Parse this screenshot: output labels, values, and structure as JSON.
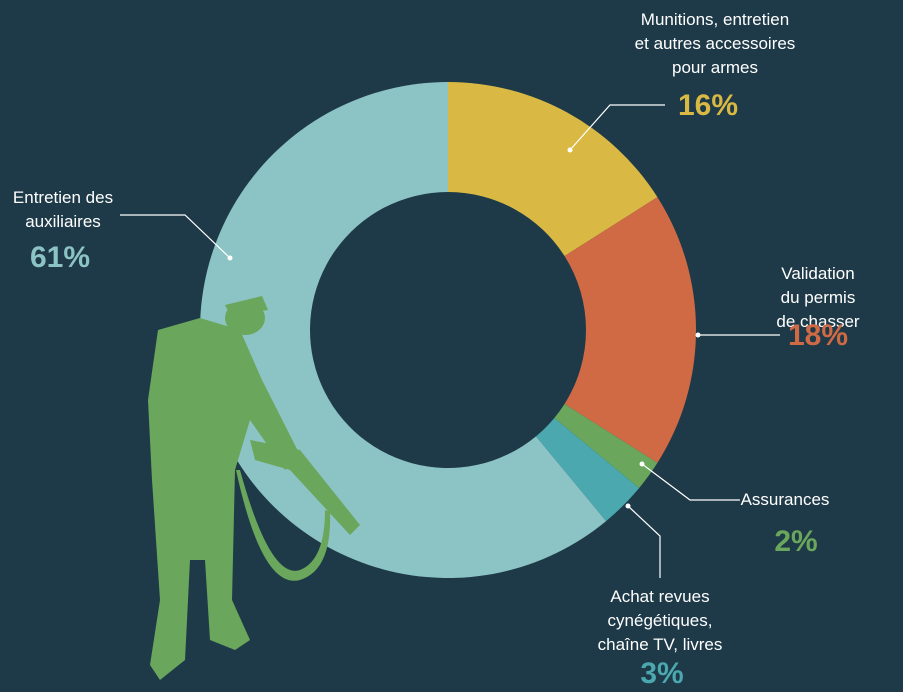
{
  "chart_data": {
    "type": "donut",
    "categories": [
      "Munitions, entretien\net autres accessoires\npour armes",
      "Validation du permis\nde chasser",
      "Assurances",
      "Achat revues\ncynégétiques,\nchaîne TV, livres",
      "Entretien des\nauxiliaires"
    ],
    "values": [
      16,
      18,
      2,
      3,
      61
    ],
    "value_labels": [
      "16%",
      "18%",
      "2%",
      "3%",
      "61%"
    ],
    "colors": [
      "#d9b944",
      "#d06a45",
      "#6aa75c",
      "#4aa8ae",
      "#8cc3c4"
    ]
  }
}
